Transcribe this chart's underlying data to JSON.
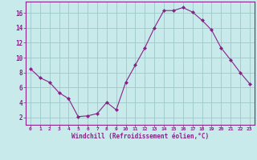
{
  "x": [
    0,
    1,
    2,
    3,
    4,
    5,
    6,
    7,
    8,
    9,
    10,
    11,
    12,
    13,
    14,
    15,
    16,
    17,
    18,
    19,
    20,
    21,
    22,
    23
  ],
  "y": [
    8.5,
    7.3,
    6.7,
    5.3,
    4.5,
    2.1,
    2.2,
    2.5,
    4.0,
    3.0,
    6.7,
    9.0,
    11.3,
    14.0,
    16.3,
    16.3,
    16.7,
    16.1,
    15.0,
    13.7,
    11.3,
    9.7,
    8.0,
    6.5
  ],
  "line_color": "#882288",
  "marker": "D",
  "marker_size": 2.0,
  "bg_color": "#c8eaea",
  "grid_color": "#a0c8c8",
  "xlabel": "Windchill (Refroidissement éolien,°C)",
  "xlim": [
    -0.5,
    23.5
  ],
  "ylim": [
    1,
    17.5
  ],
  "yticks": [
    2,
    4,
    6,
    8,
    10,
    12,
    14,
    16
  ],
  "xticks": [
    0,
    1,
    2,
    3,
    4,
    5,
    6,
    7,
    8,
    9,
    10,
    11,
    12,
    13,
    14,
    15,
    16,
    17,
    18,
    19,
    20,
    21,
    22,
    23
  ],
  "xtick_labels": [
    "0",
    "1",
    "2",
    "3",
    "4",
    "5",
    "6",
    "7",
    "8",
    "9",
    "10",
    "11",
    "12",
    "13",
    "14",
    "15",
    "16",
    "17",
    "18",
    "19",
    "20",
    "21",
    "22",
    "23"
  ]
}
